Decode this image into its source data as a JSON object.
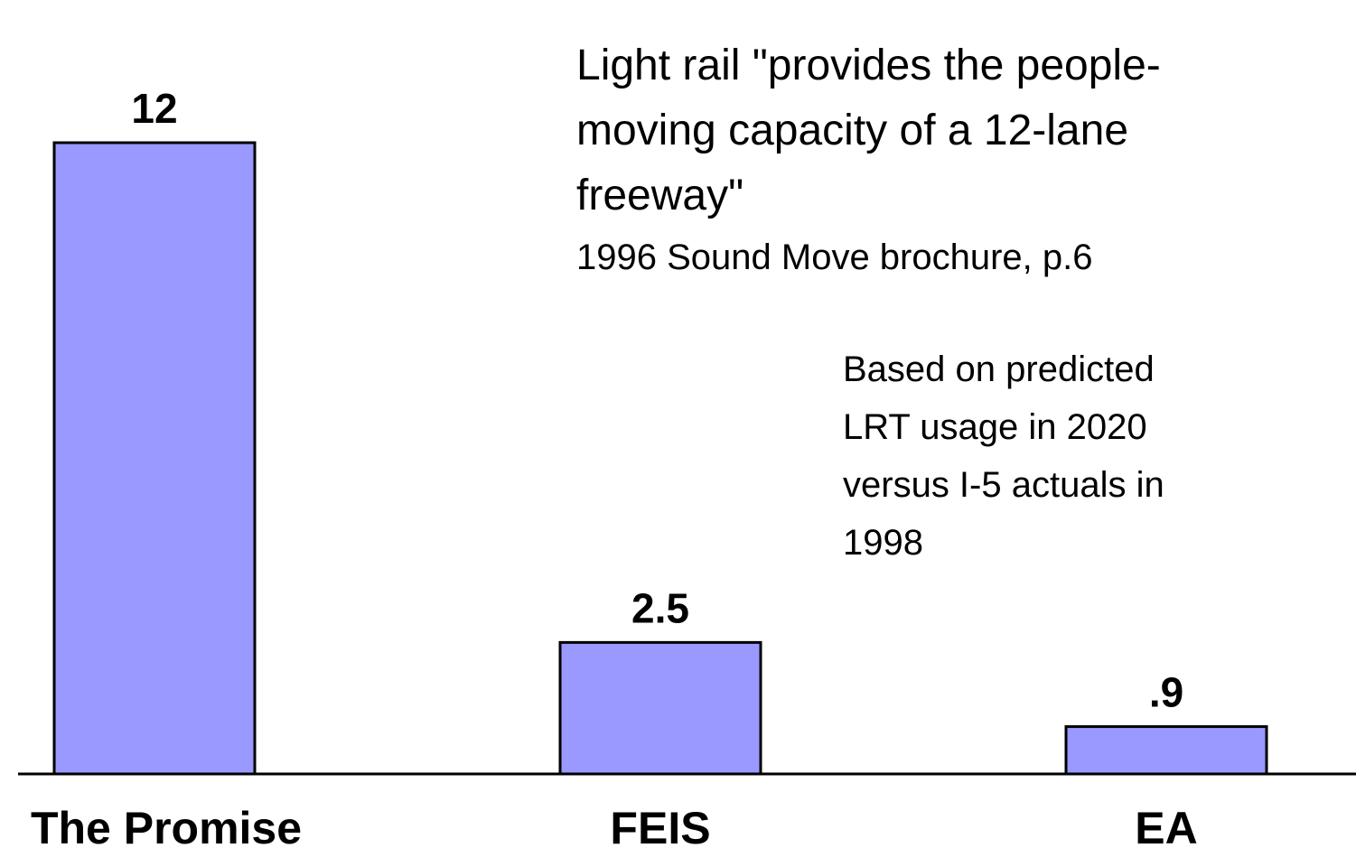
{
  "chart_data": {
    "type": "bar",
    "categories": [
      "The Promise",
      "FEIS",
      "EA"
    ],
    "values": [
      12,
      2.5,
      0.9
    ],
    "value_labels": [
      "12",
      "2.5",
      ".9"
    ],
    "color": "#9999ff",
    "quote": [
      "Light rail \"provides the people-",
      "moving capacity of a 12-lane",
      "freeway\""
    ],
    "source": "1996 Sound Move brochure, p.6",
    "note": [
      "Based on predicted",
      "LRT usage in 2020",
      "versus I-5 actuals in",
      "1998"
    ]
  }
}
